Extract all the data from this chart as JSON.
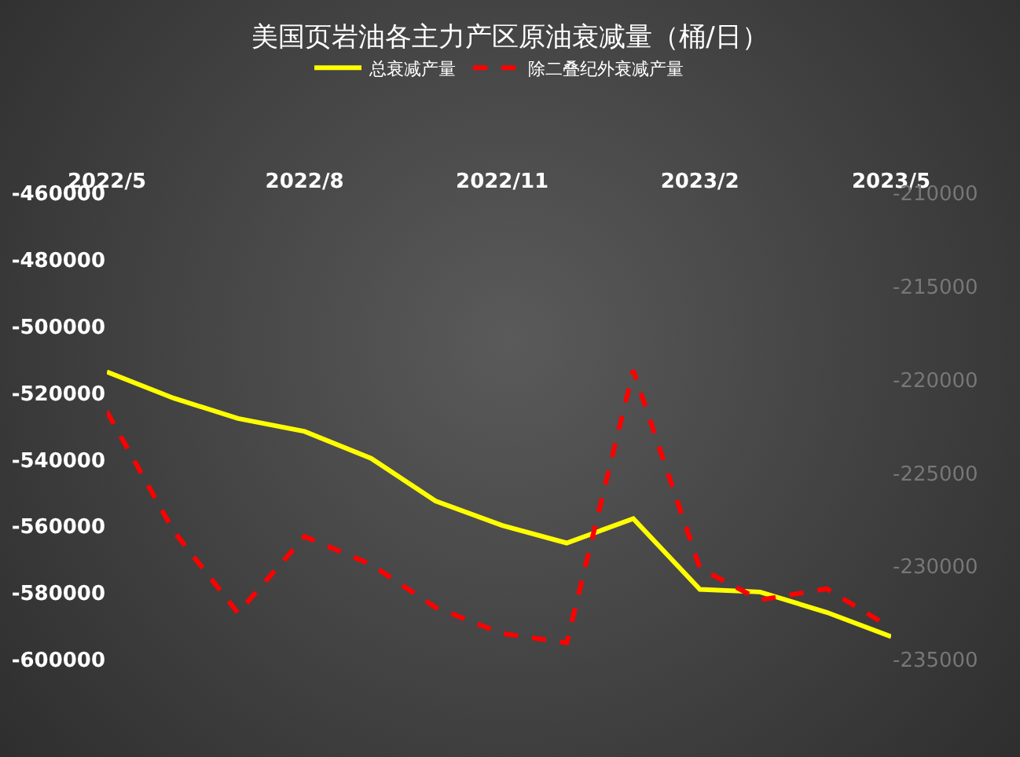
{
  "chart_data": {
    "type": "line",
    "title": "美国页岩油各主力产区原油衰减量（桶/日）",
    "x": [
      "2022-05",
      "2022-06",
      "2022-07",
      "2022-08",
      "2022-09",
      "2022-10",
      "2022-11",
      "2022-12",
      "2023-01",
      "2023-02",
      "2023-03",
      "2023-04",
      "2023-05"
    ],
    "series": [
      {
        "name": "总衰减产量",
        "color": "#ffff00",
        "line_style": "solid",
        "values": [
          -513600,
          -521500,
          -527600,
          -531500,
          -539600,
          -552400,
          -559700,
          -565000,
          -557700,
          -578900,
          -579700,
          -585800,
          -593100
        ]
      },
      {
        "name": "除二叠纪外衰减产量",
        "color": "#ff0000",
        "line_style": "dashed",
        "axis": "y2",
        "values": [
          -221700,
          -228100,
          -232500,
          -228400,
          -229900,
          -232200,
          -233600,
          -234100,
          -219500,
          -230100,
          -231800,
          -231200,
          -233300
        ]
      }
    ],
    "xlim": [
      "2022-05",
      "2023-05"
    ],
    "xticks": [
      {
        "value": "2022-05",
        "label": "2022/5"
      },
      {
        "value": "2022-08",
        "label": "2022/8"
      },
      {
        "value": "2022-11",
        "label": "2022/11"
      },
      {
        "value": "2023-02",
        "label": "2023/2"
      },
      {
        "value": "2023-05",
        "label": "2023/5"
      }
    ],
    "ylim": [
      -600000,
      -460000
    ],
    "yticks": [
      -600000,
      -580000,
      -560000,
      -540000,
      -520000,
      -500000,
      -480000,
      -460000
    ],
    "y2lim": [
      -235000,
      -210000
    ],
    "y2ticks": [
      -235000,
      -230000,
      -225000,
      -220000,
      -215000,
      -210000
    ],
    "grid": false,
    "legend": "top"
  }
}
